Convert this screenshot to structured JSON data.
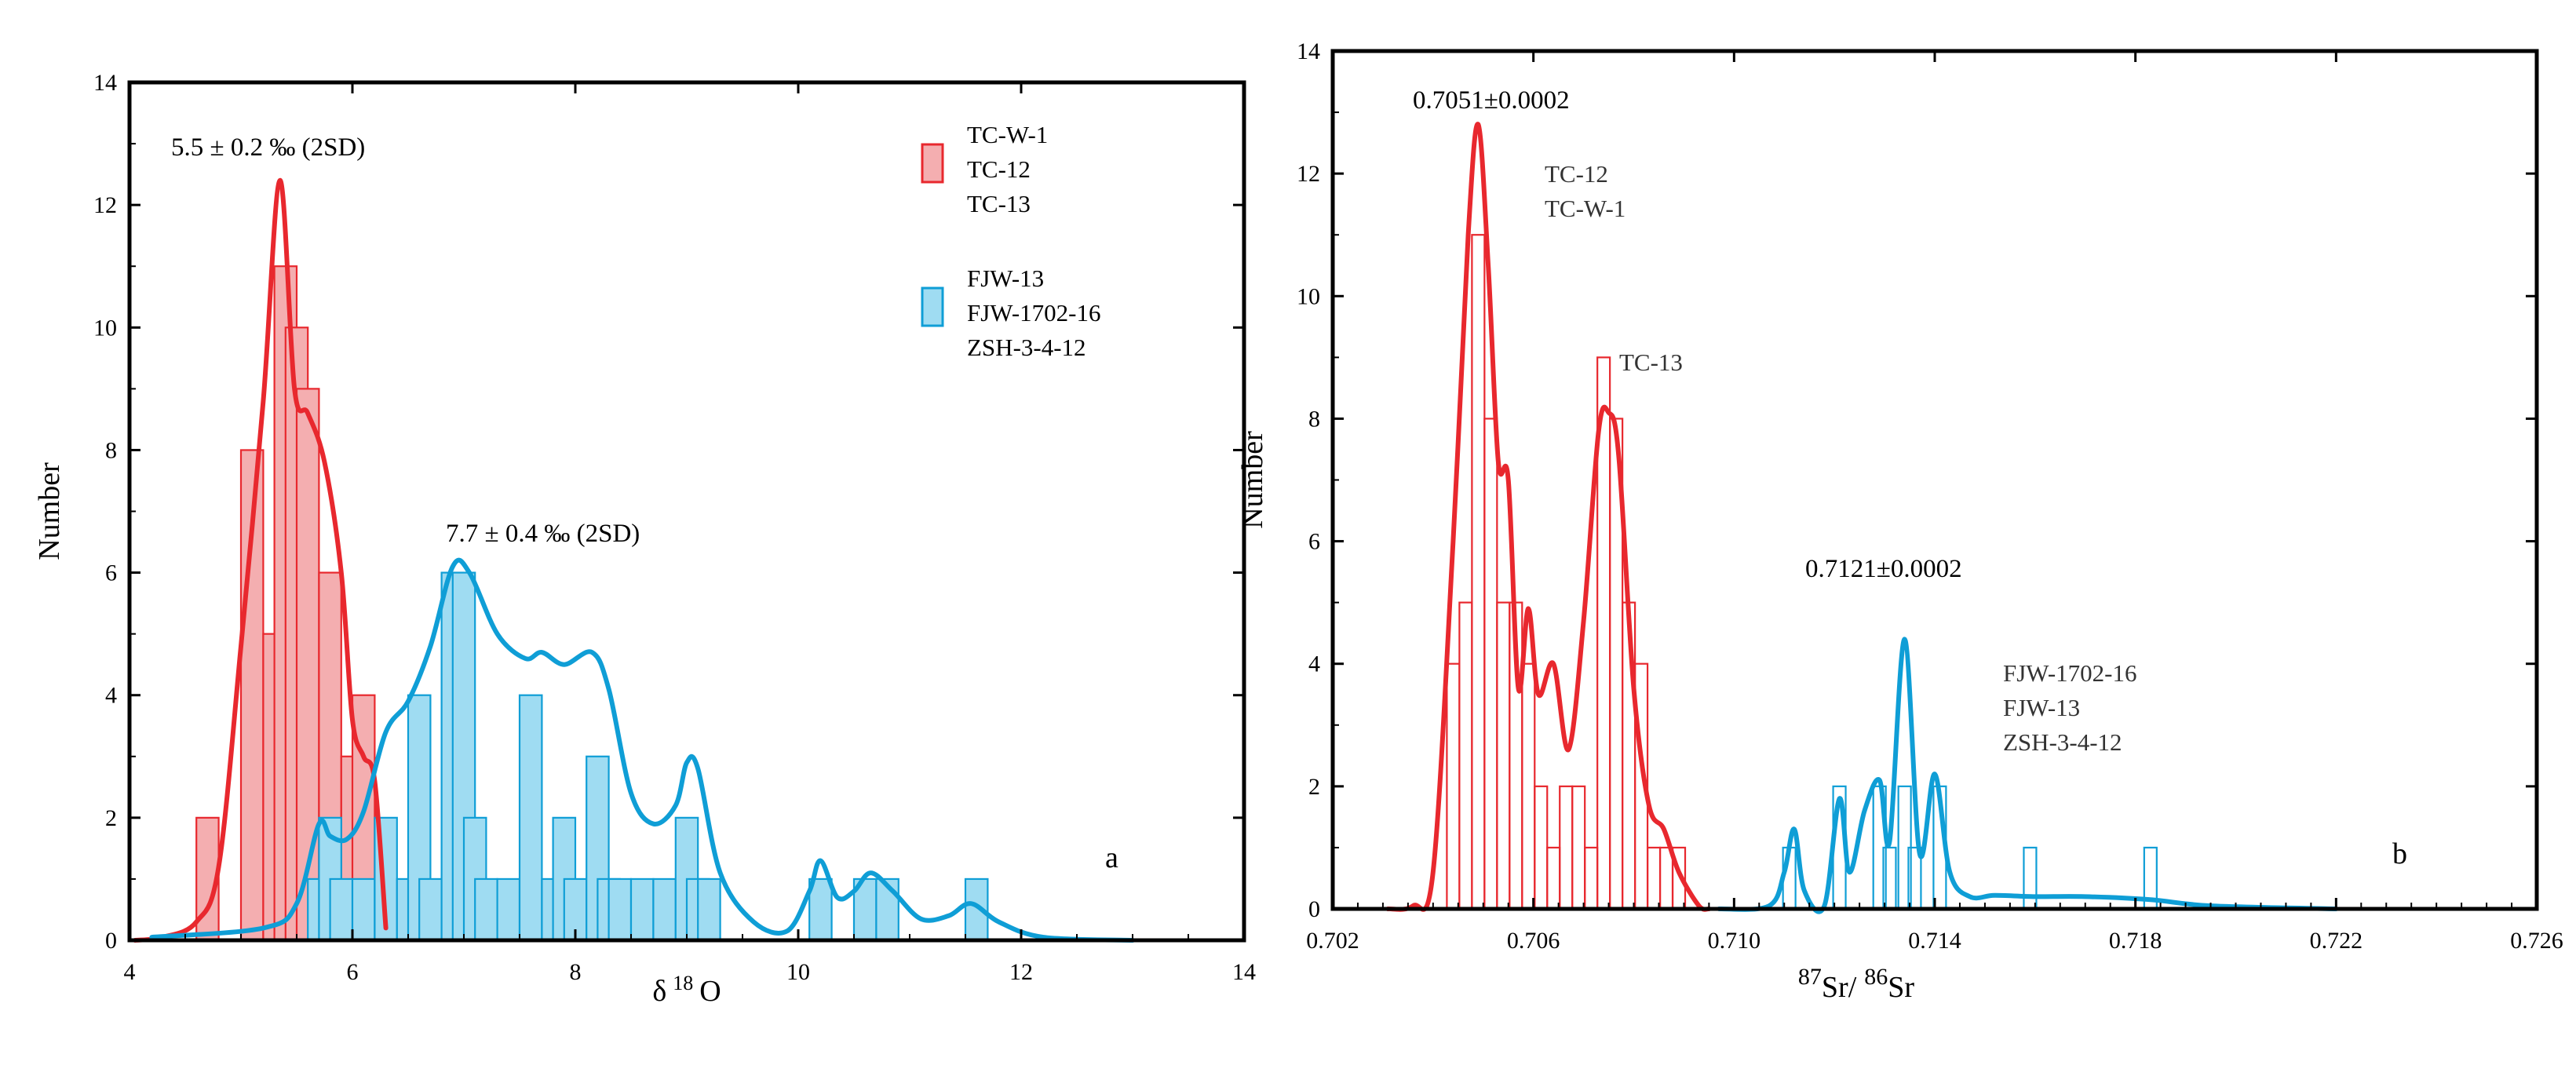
{
  "chart_data": [
    {
      "type": "bar",
      "panel_label": "a",
      "xlabel_main": "δ",
      "xlabel_sup": "18",
      "xlabel_tail": "O",
      "ylabel": "Number",
      "xlim": [
        4,
        14
      ],
      "ylim": [
        0,
        14
      ],
      "xticks": [
        "4",
        "6",
        "8",
        "10",
        "12",
        "14"
      ],
      "yticks": [
        "0",
        "2",
        "4",
        "6",
        "8",
        "10",
        "12",
        "14"
      ],
      "grid": false,
      "legend_position": "top-right",
      "annotations": [
        "5.5 ± 0.2 ‰ (2SD)",
        "7.7 ± 0.4 ‰ (2SD)"
      ],
      "series": [
        {
          "name_lines": [
            "TC-W-1",
            "TC-12",
            "TC-13"
          ],
          "color": "#e8282e",
          "fill": "#f4aeb0",
          "bin_width": 0.2,
          "bars": [
            [
              4.7,
              2
            ],
            [
              5.1,
              8
            ],
            [
              5.3,
              5
            ],
            [
              5.4,
              11
            ],
            [
              5.5,
              10
            ],
            [
              5.6,
              9
            ],
            [
              5.8,
              6
            ],
            [
              6.0,
              3
            ],
            [
              6.1,
              4
            ]
          ],
          "density": [
            [
              4.05,
              0
            ],
            [
              4.3,
              0.05
            ],
            [
              4.6,
              0.3
            ],
            [
              4.8,
              1.2
            ],
            [
              5.0,
              4.8
            ],
            [
              5.2,
              8.8
            ],
            [
              5.35,
              12.4
            ],
            [
              5.48,
              9.0
            ],
            [
              5.6,
              8.6
            ],
            [
              5.75,
              7.8
            ],
            [
              5.9,
              6.0
            ],
            [
              6.0,
              3.6
            ],
            [
              6.1,
              3.0
            ],
            [
              6.2,
              2.6
            ],
            [
              6.3,
              0.2
            ]
          ]
        },
        {
          "name_lines": [
            "FJW-13",
            "FJW-1702-16",
            "ZSH-3-4-12"
          ],
          "color": "#0f9ed6",
          "fill": "#9fdcf2",
          "bin_width": 0.2,
          "bars": [
            [
              5.7,
              1
            ],
            [
              5.8,
              2
            ],
            [
              5.9,
              1
            ],
            [
              6.1,
              1
            ],
            [
              6.3,
              2
            ],
            [
              6.5,
              1
            ],
            [
              6.6,
              4
            ],
            [
              6.7,
              1
            ],
            [
              6.9,
              6
            ],
            [
              7.0,
              6
            ],
            [
              7.1,
              2
            ],
            [
              7.2,
              1
            ],
            [
              7.4,
              1
            ],
            [
              7.6,
              4
            ],
            [
              7.8,
              1
            ],
            [
              7.9,
              2
            ],
            [
              8.0,
              1
            ],
            [
              8.2,
              3
            ],
            [
              8.3,
              1
            ],
            [
              8.4,
              1
            ],
            [
              8.6,
              1
            ],
            [
              8.8,
              1
            ],
            [
              9.0,
              2
            ],
            [
              9.1,
              1
            ],
            [
              9.2,
              1
            ],
            [
              10.2,
              1
            ],
            [
              10.6,
              1
            ],
            [
              10.8,
              1
            ],
            [
              11.6,
              1
            ]
          ],
          "density": [
            [
              4.2,
              0.05
            ],
            [
              5.2,
              0.2
            ],
            [
              5.5,
              0.6
            ],
            [
              5.7,
              1.9
            ],
            [
              5.8,
              1.7
            ],
            [
              5.95,
              1.65
            ],
            [
              6.1,
              2.1
            ],
            [
              6.3,
              3.4
            ],
            [
              6.5,
              3.9
            ],
            [
              6.7,
              4.8
            ],
            [
              6.9,
              6.1
            ],
            [
              7.05,
              6.0
            ],
            [
              7.3,
              5.0
            ],
            [
              7.55,
              4.6
            ],
            [
              7.7,
              4.7
            ],
            [
              7.9,
              4.5
            ],
            [
              8.15,
              4.7
            ],
            [
              8.3,
              4.1
            ],
            [
              8.5,
              2.4
            ],
            [
              8.7,
              1.9
            ],
            [
              8.9,
              2.2
            ],
            [
              9.0,
              2.9
            ],
            [
              9.1,
              2.8
            ],
            [
              9.3,
              1.1
            ],
            [
              9.6,
              0.3
            ],
            [
              9.9,
              0.15
            ],
            [
              10.1,
              0.8
            ],
            [
              10.2,
              1.3
            ],
            [
              10.35,
              0.7
            ],
            [
              10.5,
              0.8
            ],
            [
              10.65,
              1.1
            ],
            [
              10.85,
              0.8
            ],
            [
              11.1,
              0.35
            ],
            [
              11.35,
              0.4
            ],
            [
              11.55,
              0.6
            ],
            [
              11.8,
              0.3
            ],
            [
              12.2,
              0.05
            ],
            [
              13.0,
              0
            ]
          ]
        }
      ]
    },
    {
      "type": "bar",
      "panel_label": "b",
      "xlabel_sup1": "87",
      "xlabel_mid": "Sr/",
      "xlabel_sup2": "86",
      "xlabel_tail": "Sr",
      "ylabel": "Number",
      "xlim": [
        0.702,
        0.726
      ],
      "ylim": [
        0,
        14
      ],
      "xticks": [
        "0.702",
        "0.706",
        "0.710",
        "0.714",
        "0.718",
        "0.722",
        "0.726"
      ],
      "yticks": [
        "0",
        "2",
        "4",
        "6",
        "8",
        "10",
        "12",
        "14"
      ],
      "grid": false,
      "annotations": [
        "0.7051±0.0002",
        "0.7121±0.0002"
      ],
      "series": [
        {
          "label_groups": [
            [
              "TC-12",
              "TC-W-1"
            ],
            [
              "TC-13"
            ]
          ],
          "color": "#e8282e",
          "fill": "none",
          "bin_width": 0.00025,
          "bars": [
            [
              0.7044,
              4
            ],
            [
              0.70465,
              5
            ],
            [
              0.7049,
              11
            ],
            [
              0.70515,
              8
            ],
            [
              0.7054,
              5
            ],
            [
              0.70565,
              5
            ],
            [
              0.7059,
              4
            ],
            [
              0.70615,
              2
            ],
            [
              0.7064,
              1
            ],
            [
              0.70665,
              2
            ],
            [
              0.7069,
              2
            ],
            [
              0.70715,
              1
            ],
            [
              0.7074,
              9
            ],
            [
              0.70765,
              8
            ],
            [
              0.7079,
              5
            ],
            [
              0.70815,
              4
            ],
            [
              0.7084,
              1
            ],
            [
              0.70865,
              1
            ],
            [
              0.7089,
              1
            ]
          ],
          "density": [
            [
              0.7031,
              0
            ],
            [
              0.7036,
              0.05
            ],
            [
              0.704,
              0.6
            ],
            [
              0.7044,
              6.0
            ],
            [
              0.7047,
              11.0
            ],
            [
              0.7049,
              12.8
            ],
            [
              0.7051,
              10.5
            ],
            [
              0.7053,
              7.3
            ],
            [
              0.7055,
              7.0
            ],
            [
              0.7057,
              3.6
            ],
            [
              0.7059,
              4.9
            ],
            [
              0.7061,
              3.5
            ],
            [
              0.7064,
              4.0
            ],
            [
              0.7067,
              2.6
            ],
            [
              0.707,
              4.7
            ],
            [
              0.7073,
              7.8
            ],
            [
              0.7075,
              8.1
            ],
            [
              0.7077,
              7.4
            ],
            [
              0.708,
              3.6
            ],
            [
              0.7083,
              1.7
            ],
            [
              0.7086,
              1.3
            ],
            [
              0.7089,
              0.6
            ],
            [
              0.7093,
              0.05
            ],
            [
              0.7095,
              0
            ]
          ]
        },
        {
          "label_groups": [
            [
              "FJW-1702-16",
              "FJW-13",
              "ZSH-3-4-12"
            ]
          ],
          "color": "#0f9ed6",
          "fill": "none",
          "bin_width": 0.00025,
          "bars": [
            [
              0.7111,
              1
            ],
            [
              0.7121,
              2
            ],
            [
              0.7129,
              2
            ],
            [
              0.7131,
              1
            ],
            [
              0.7134,
              2
            ],
            [
              0.7136,
              1
            ],
            [
              0.7141,
              2
            ],
            [
              0.7159,
              1
            ],
            [
              0.7183,
              1
            ]
          ],
          "density": [
            [
              0.7097,
              0
            ],
            [
              0.7107,
              0.05
            ],
            [
              0.711,
              0.6
            ],
            [
              0.7112,
              1.3
            ],
            [
              0.7114,
              0.3
            ],
            [
              0.7118,
              0.05
            ],
            [
              0.7121,
              1.8
            ],
            [
              0.7123,
              0.6
            ],
            [
              0.7126,
              1.6
            ],
            [
              0.7129,
              2.1
            ],
            [
              0.7131,
              1.1
            ],
            [
              0.7134,
              4.4
            ],
            [
              0.7137,
              0.9
            ],
            [
              0.714,
              2.2
            ],
            [
              0.7143,
              0.6
            ],
            [
              0.7147,
              0.2
            ],
            [
              0.7152,
              0.22
            ],
            [
              0.716,
              0.2
            ],
            [
              0.717,
              0.2
            ],
            [
              0.7183,
              0.15
            ],
            [
              0.7195,
              0.05
            ],
            [
              0.722,
              0
            ]
          ]
        }
      ]
    }
  ]
}
